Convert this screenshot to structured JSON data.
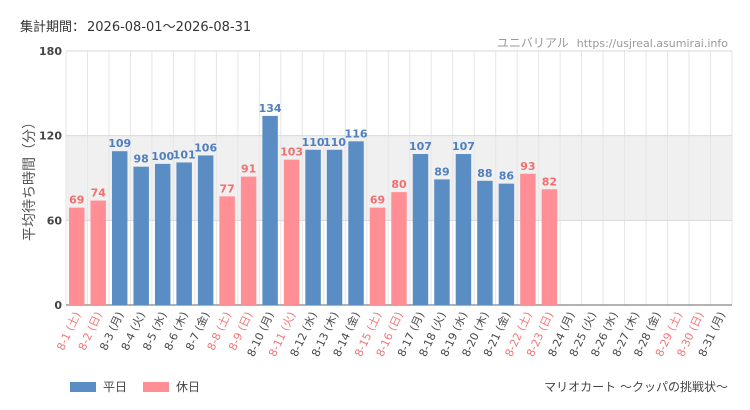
{
  "header": {
    "period_label": "集計期間：",
    "period_range": "2026-08-01～2026-08-31",
    "site_name": "ユニバリアル",
    "site_url": "https://usjreal.asumirai.info"
  },
  "attraction": "マリオカート ～クッパの挑戦状～",
  "colors": {
    "weekday": "#5b8dc5",
    "holiday": "#ff8f94",
    "holiday_label": "#f07878",
    "weekday_label": "#4a4a4a",
    "value_weekday": "#4f7fbf",
    "value_holiday": "#f07070",
    "band": "#f0f0f0"
  },
  "chart_data": {
    "type": "bar",
    "ylabel": "平均待ち時間（分）",
    "ylim": [
      0,
      180
    ],
    "yticks": [
      0,
      60,
      120,
      180
    ],
    "shaded_band": [
      60,
      120
    ],
    "legend": [
      {
        "name": "平日",
        "key": "weekday"
      },
      {
        "name": "休日",
        "key": "holiday"
      }
    ],
    "legend_position": "bottom-left",
    "categories": [
      "8-1 (土)",
      "8-2 (日)",
      "8-3 (月)",
      "8-4 (火)",
      "8-5 (水)",
      "8-6 (木)",
      "8-7 (金)",
      "8-8 (土)",
      "8-9 (日)",
      "8-10 (月)",
      "8-11 (火)",
      "8-12 (水)",
      "8-13 (木)",
      "8-14 (金)",
      "8-15 (土)",
      "8-16 (日)",
      "8-17 (月)",
      "8-18 (火)",
      "8-19 (水)",
      "8-20 (木)",
      "8-21 (金)",
      "8-22 (土)",
      "8-23 (日)",
      "8-24 (月)",
      "8-25 (火)",
      "8-26 (水)",
      "8-27 (木)",
      "8-28 (金)",
      "8-29 (土)",
      "8-30 (日)",
      "8-31 (月)"
    ],
    "values": [
      69,
      74,
      109,
      98,
      100,
      101,
      106,
      77,
      91,
      134,
      103,
      110,
      110,
      116,
      69,
      80,
      107,
      89,
      107,
      88,
      86,
      93,
      82,
      null,
      null,
      null,
      null,
      null,
      null,
      null,
      null
    ],
    "day_type": [
      "holiday",
      "holiday",
      "weekday",
      "weekday",
      "weekday",
      "weekday",
      "weekday",
      "holiday",
      "holiday",
      "weekday",
      "holiday",
      "weekday",
      "weekday",
      "weekday",
      "holiday",
      "holiday",
      "weekday",
      "weekday",
      "weekday",
      "weekday",
      "weekday",
      "holiday",
      "holiday",
      "weekday",
      "weekday",
      "weekday",
      "weekday",
      "weekday",
      "holiday",
      "holiday",
      "weekday"
    ]
  }
}
